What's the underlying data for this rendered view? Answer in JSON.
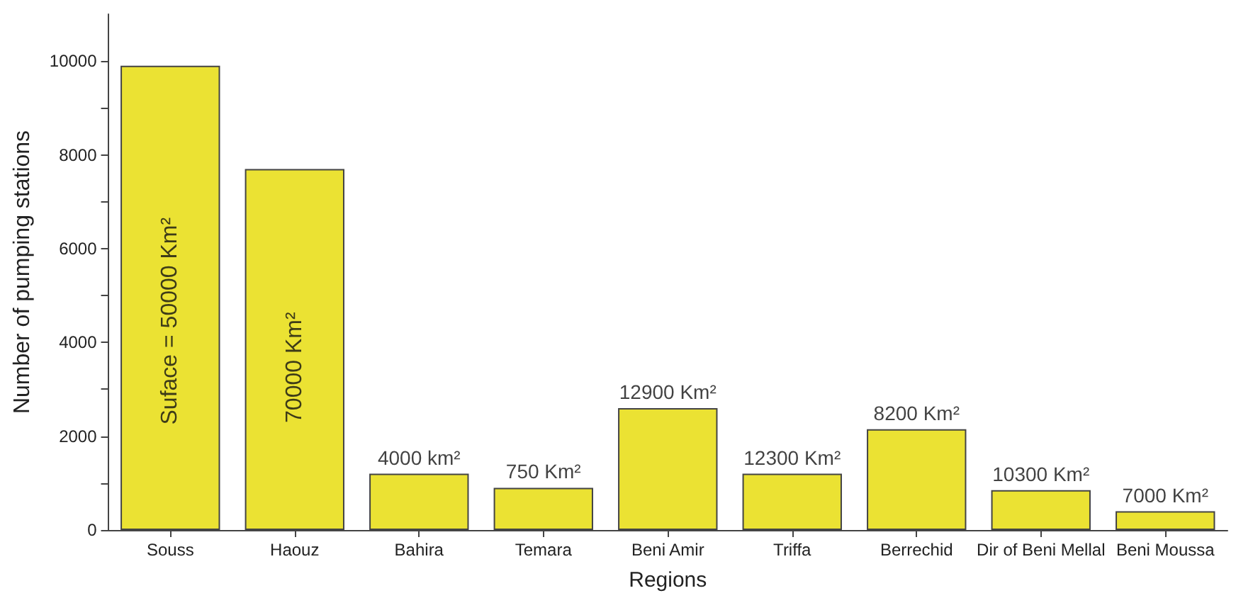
{
  "chart_data": {
    "type": "bar",
    "xlabel": "Regions",
    "ylabel": "Number of pumping stations",
    "categories": [
      "Souss",
      "Haouz",
      "Bahira",
      "Temara",
      "Beni Amir",
      "Triffa",
      "Berrechid",
      "Dir of Beni Mellal",
      "Beni Moussa"
    ],
    "values": [
      9900,
      7700,
      1200,
      900,
      2600,
      1200,
      2150,
      850,
      400
    ],
    "annotations": [
      "Suface = 50000 Km²",
      "70000 Km²",
      {
        "text": "4000 km²",
        "x": "Bahira",
        "y": 1200
      },
      {
        "text": "750 Km²",
        "x": "Temara",
        "y": 900
      },
      {
        "text": "12900 Km²",
        "x": "Beni Amir",
        "y": 2600
      },
      {
        "text": "12300 Km²",
        "x": "Triffa",
        "y": 1200
      },
      {
        "text": "8200 Km²",
        "x": "Berrechid",
        "y": 2150
      },
      {
        "text": "10300 Km²",
        "x": "Dir of Beni Mellal",
        "y": 850
      },
      {
        "text": "7000 Km²",
        "x": "Beni Moussa",
        "y": 400
      }
    ],
    "color": "#ebe233",
    "ylim": [
      0,
      11000
    ],
    "yticks": [
      0,
      2000,
      4000,
      6000,
      8000,
      10000
    ],
    "grid": false
  }
}
